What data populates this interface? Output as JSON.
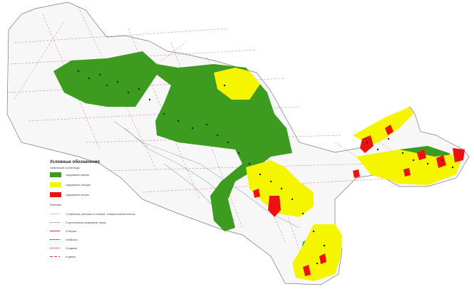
{
  "map": {
    "legend": {
      "title": "Условные обозначения",
      "subtitle": "Химический состав воды",
      "fill_items": [
        {
          "label": "содержание магния",
          "color": "#3d9b20"
        },
        {
          "label": "содержание кальция",
          "color": "#f5f500"
        },
        {
          "label": "содержание натрия",
          "color": "#ee1111"
        }
      ],
      "section_title": "Разломы",
      "line_items": [
        {
          "label": "1 глубинные разломы по осевым - поверхностный генезис",
          "color": "#cccccc"
        },
        {
          "label": "2 ортогонально-разрывные линии",
          "color": "#bb8899"
        },
        {
          "label": "3 сбросы",
          "color": "#cc3333"
        },
        {
          "label": "4 взбросы",
          "color": "#cc3333"
        },
        {
          "label": "5 надвиги",
          "color": "#cc3333"
        },
        {
          "label": "6 сдвиги",
          "color": "#cc3333"
        }
      ]
    },
    "colors": {
      "country_fill": "#f7f7f7",
      "outline": "#7a7a7a",
      "green": "#3d9b20",
      "yellow": "#f5f500",
      "red": "#ee1111",
      "faults": "#c97b85",
      "rivers": "#9aa7b4"
    }
  }
}
